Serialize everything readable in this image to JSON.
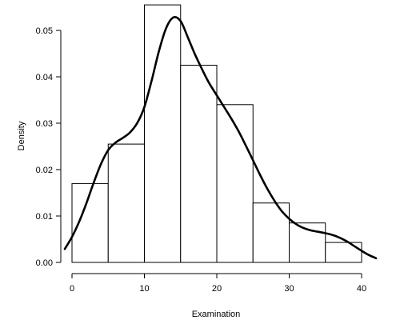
{
  "chart_data": {
    "type": "bar",
    "subtype": "histogram-with-density",
    "title": "",
    "xlabel": "Examination",
    "ylabel": "Density",
    "xlim": [
      0,
      40
    ],
    "ylim": [
      0,
      0.05
    ],
    "x_ticks": [
      0,
      10,
      20,
      30,
      40
    ],
    "x_tick_labels": [
      "0",
      "10",
      "20",
      "30",
      "40"
    ],
    "y_ticks": [
      0.0,
      0.01,
      0.02,
      0.03,
      0.04,
      0.05
    ],
    "y_tick_labels": [
      "0.00",
      "0.01",
      "0.02",
      "0.03",
      "0.04",
      "0.05"
    ],
    "grid": false,
    "bins": [
      {
        "start": 0,
        "end": 5,
        "density": 0.017
      },
      {
        "start": 5,
        "end": 10,
        "density": 0.0255
      },
      {
        "start": 10,
        "end": 15,
        "density": 0.0555
      },
      {
        "start": 15,
        "end": 20,
        "density": 0.0425
      },
      {
        "start": 20,
        "end": 25,
        "density": 0.034
      },
      {
        "start": 25,
        "end": 30,
        "density": 0.0128
      },
      {
        "start": 30,
        "end": 35,
        "density": 0.0085
      },
      {
        "start": 35,
        "end": 40,
        "density": 0.0043
      }
    ],
    "density_curve": {
      "x": [
        -1,
        0,
        1,
        2,
        3,
        4,
        5,
        6,
        7,
        8,
        9,
        10,
        11,
        12,
        13,
        14,
        15,
        16,
        17,
        18,
        19,
        20,
        21,
        22,
        23,
        24,
        25,
        26,
        27,
        28,
        29,
        30,
        31,
        32,
        33,
        34,
        35,
        36,
        37,
        38,
        39,
        40,
        41,
        42
      ],
      "y": [
        0.0029,
        0.0055,
        0.0088,
        0.0128,
        0.0172,
        0.0212,
        0.0242,
        0.0258,
        0.0268,
        0.028,
        0.03,
        0.0335,
        0.0392,
        0.0455,
        0.0505,
        0.0528,
        0.052,
        0.0485,
        0.0448,
        0.0415,
        0.0385,
        0.036,
        0.0335,
        0.031,
        0.0283,
        0.0252,
        0.022,
        0.0188,
        0.0158,
        0.0132,
        0.011,
        0.0094,
        0.0082,
        0.0074,
        0.0069,
        0.0066,
        0.0063,
        0.0059,
        0.0053,
        0.0045,
        0.0035,
        0.0025,
        0.0016,
        0.0009
      ]
    }
  }
}
